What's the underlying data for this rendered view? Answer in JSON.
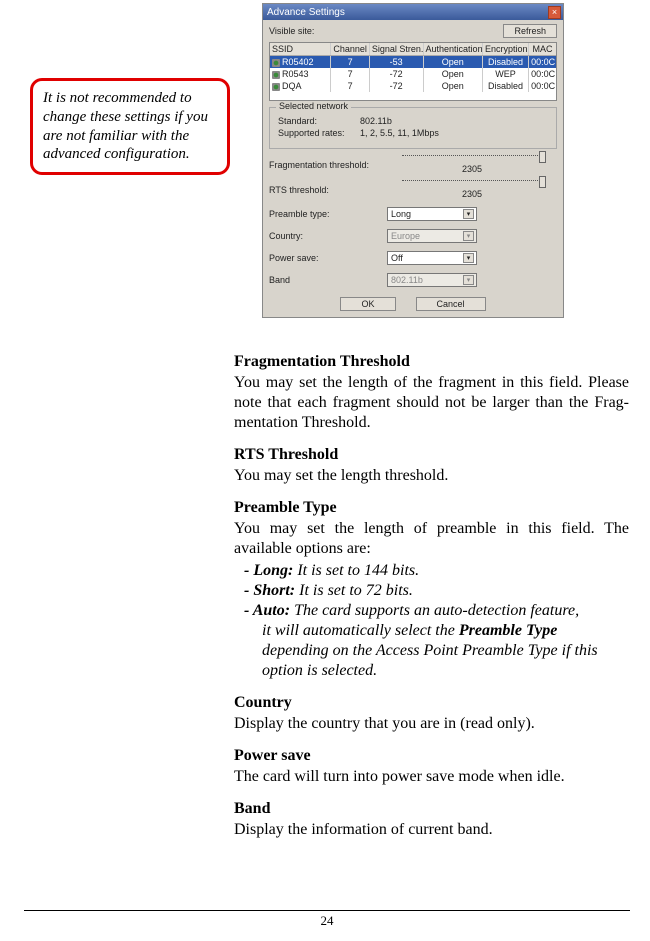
{
  "callout": {
    "text": "It is not recommended to change these settings if you are not familiar with the advanced configuration."
  },
  "dialog": {
    "title": "Advance Settings",
    "visible_site_label": "Visible site:",
    "refresh": "Refresh",
    "columns": {
      "ssid": "SSID",
      "channel": "Channel",
      "signal": "Signal Stren..",
      "auth": "Authentication",
      "enc": "Encryption",
      "mac": "MAC"
    },
    "rows": [
      {
        "ssid": "R05402",
        "ch": "7",
        "sig": "-53",
        "auth": "Open",
        "enc": "Disabled",
        "mac": "00:0C"
      },
      {
        "ssid": "R0543",
        "ch": "7",
        "sig": "-72",
        "auth": "Open",
        "enc": "WEP",
        "mac": "00:0C"
      },
      {
        "ssid": "DQA",
        "ch": "7",
        "sig": "-72",
        "auth": "Open",
        "enc": "Disabled",
        "mac": "00:0C"
      }
    ],
    "group": {
      "legend": "Selected network",
      "standard_label": "Standard:",
      "standard_value": "802.11b",
      "rates_label": "Supported rates:",
      "rates_value": "1, 2, 5.5, 11, 1Mbps"
    },
    "frag": {
      "label": "Fragmentation threshold:",
      "value": "2305"
    },
    "rts": {
      "label": "RTS threshold:",
      "value": "2305"
    },
    "preamble": {
      "label": "Preamble type:",
      "value": "Long"
    },
    "country": {
      "label": "Country:",
      "value": "Europe"
    },
    "power": {
      "label": "Power save:",
      "value": "Off"
    },
    "band": {
      "label": "Band",
      "value": "802.11b"
    },
    "ok": "OK",
    "cancel": "Cancel"
  },
  "sections": {
    "frag": {
      "title": "Fragmentation Threshold",
      "body": "You may set the length of the fragment in this field. Please note that each fragment should not be larger than the Frag-mentation Threshold."
    },
    "rts": {
      "title": "RTS Threshold",
      "body": "You may set the length threshold."
    },
    "preamble": {
      "title": "Preamble Type",
      "body": "You may set the length of preamble in this field.  The available options are:",
      "opt_long_h": "- Long:",
      "opt_long_b": " It is set to 144 bits.",
      "opt_short_h": "- Short:",
      "opt_short_b": " It is set to 72 bits.",
      "opt_auto_h": "- Auto:",
      "opt_auto_b1": " The card supports an auto-detection feature,",
      "opt_auto_b2a": "it will automatically select the ",
      "opt_auto_b2b": "Preamble Type",
      "opt_auto_b3": "depending on the Access Point Preamble Type if this",
      "opt_auto_b4": "option is selected."
    },
    "country": {
      "title": "Country",
      "body": "Display the country that you are in (read only)."
    },
    "power": {
      "title": "Power save",
      "body": "The card will turn into power save mode when idle."
    },
    "band": {
      "title": "Band",
      "body": "Display the information of current band."
    }
  },
  "page_number": "24"
}
